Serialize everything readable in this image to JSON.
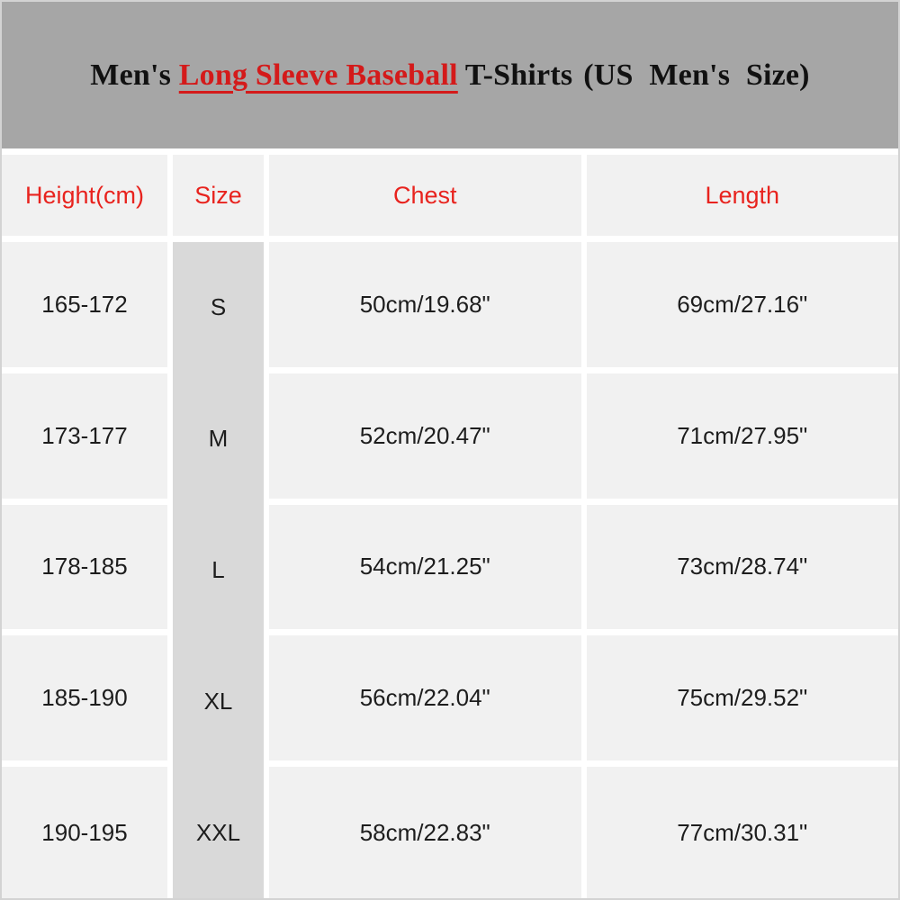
{
  "banner": {
    "title_prefix": "Men's ",
    "title_highlight": "Long Sleeve Baseball",
    "title_product": " T-Shirts",
    "title_note": "(US Men's Size)"
  },
  "table": {
    "columns": [
      {
        "key": "height",
        "label": "Height(cm)"
      },
      {
        "key": "size",
        "label": "Size"
      },
      {
        "key": "chest",
        "label": "Chest"
      },
      {
        "key": "length",
        "label": "Length"
      }
    ],
    "rows": [
      {
        "height": "165-172",
        "size": "S",
        "chest": "50cm/19.68\"",
        "length": "69cm/27.16\""
      },
      {
        "height": "173-177",
        "size": "M",
        "chest": "52cm/20.47\"",
        "length": "71cm/27.95\""
      },
      {
        "height": "178-185",
        "size": "L",
        "chest": "54cm/21.25\"",
        "length": "73cm/28.74\""
      },
      {
        "height": "185-190",
        "size": "XL",
        "chest": "56cm/22.04\"",
        "length": "75cm/29.52\""
      },
      {
        "height": "190-195",
        "size": "XXL",
        "chest": "58cm/22.83\"",
        "length": "77cm/30.31\""
      }
    ]
  },
  "colors": {
    "banner_bg": "#a6a6a6",
    "cell_bg": "#f1f1f1",
    "size_column_bg": "#d9d9d9",
    "separator": "#ffffff",
    "header_text": "#e8231e",
    "title_highlight": "#d41a1a",
    "body_text": "#1d1d1d",
    "frame_border": "#d3d3d3"
  }
}
